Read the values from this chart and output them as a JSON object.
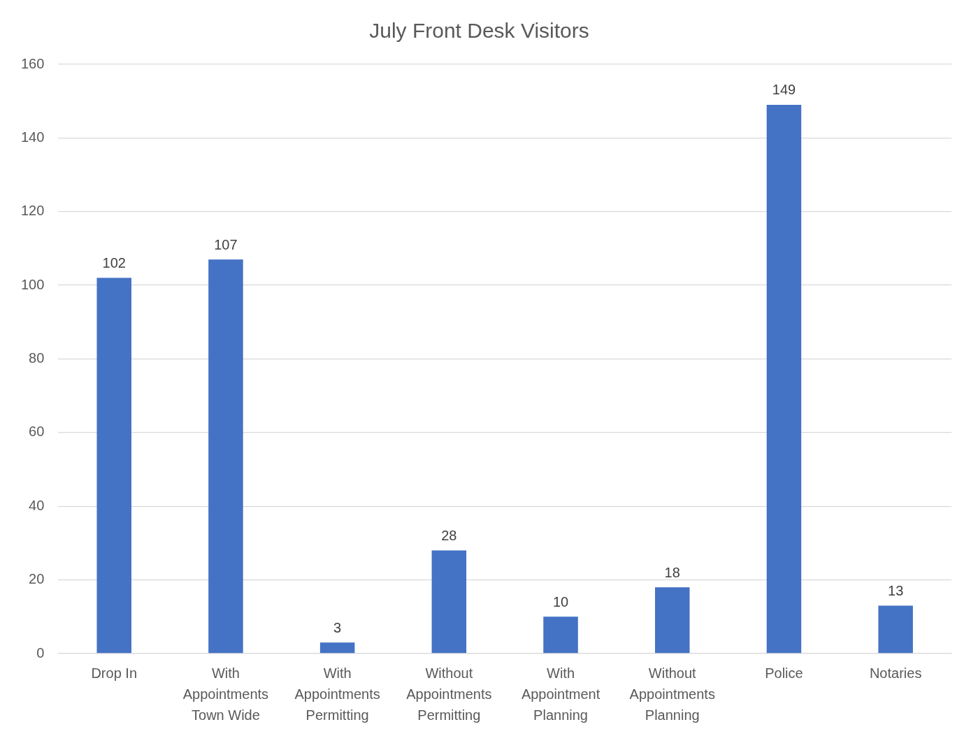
{
  "chart_data": {
    "type": "bar",
    "title": "July Front Desk Visitors",
    "categories": [
      "Drop In",
      "With Appointments Town Wide",
      "With Appointments Permitting",
      "Without Appointments Permitting",
      "With Appointment Planning",
      "Without Appointments Planning",
      "Police",
      "Notaries"
    ],
    "values": [
      102,
      107,
      3,
      28,
      10,
      18,
      149,
      13
    ],
    "color": "#4472c4",
    "ylim": [
      0,
      160
    ],
    "yticks": [
      0,
      20,
      40,
      60,
      80,
      100,
      120,
      140,
      160
    ],
    "grid": "y",
    "legend": false,
    "data_labels": true
  }
}
